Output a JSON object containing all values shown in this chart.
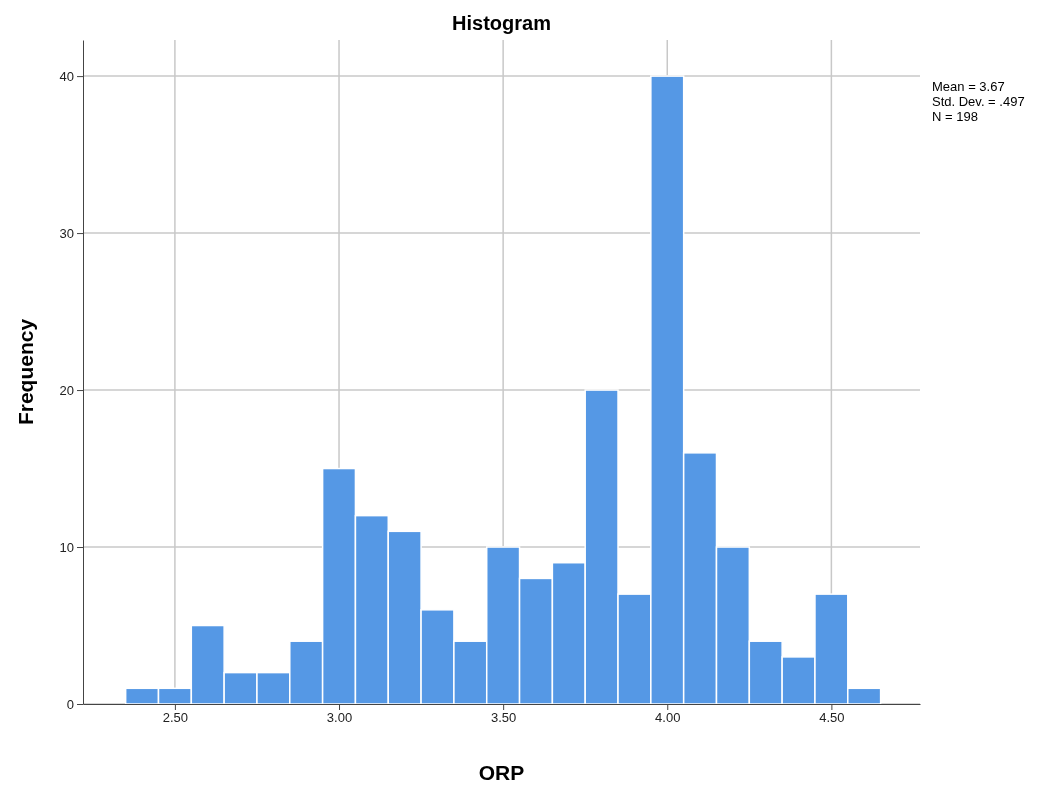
{
  "chart_data": {
    "type": "histogram",
    "title": "Histogram",
    "xlabel": "ORP",
    "ylabel": "Frequency",
    "bins": [
      2.35,
      2.45,
      2.55,
      2.65,
      2.75,
      2.85,
      2.95,
      3.05,
      3.15,
      3.25,
      3.35,
      3.45,
      3.55,
      3.65,
      3.75,
      3.85,
      3.95,
      4.05,
      4.15,
      4.25,
      4.35,
      4.45,
      4.55,
      4.65
    ],
    "values": [
      1,
      1,
      5,
      2,
      2,
      4,
      15,
      12,
      11,
      6,
      4,
      10,
      8,
      9,
      20,
      7,
      40,
      16,
      10,
      4,
      3,
      7,
      1
    ],
    "color": "#5598e5",
    "xlim": [
      2.22,
      4.77
    ],
    "xticks": [
      {
        "value": 2.5,
        "label": "2.50"
      },
      {
        "value": 3,
        "label": "3.00"
      },
      {
        "value": 3.5,
        "label": "3.50"
      },
      {
        "value": 4,
        "label": "4.00"
      },
      {
        "value": 4.5,
        "label": "4.50"
      }
    ],
    "ylim": [
      0,
      42.3
    ],
    "yticks": [
      0,
      10,
      20,
      30,
      40
    ],
    "grid": true,
    "annotations": [
      "Mean = 3.67",
      "Std. Dev. = .497",
      "N = 198"
    ]
  }
}
